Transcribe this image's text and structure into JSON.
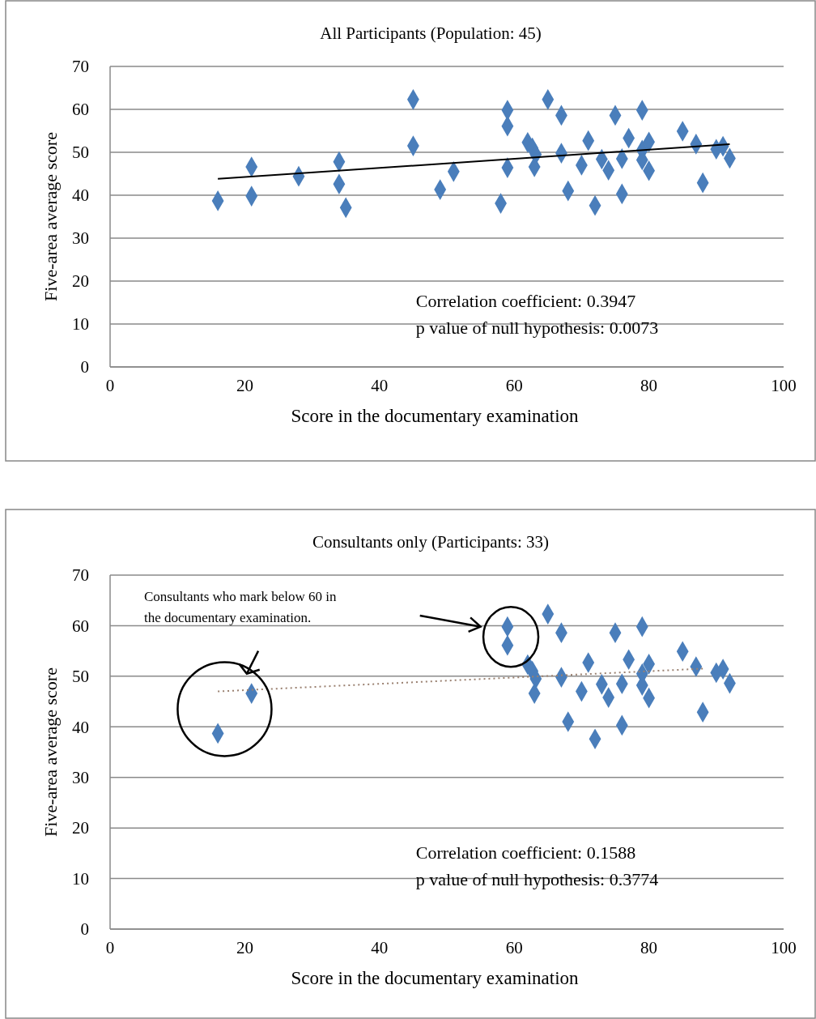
{
  "chart_data": [
    {
      "type": "scatter",
      "title": "All Participants (Population: 45)",
      "xlabel": "Score in the documentary examination",
      "ylabel": "Five-area average score",
      "xlim": [
        0,
        100
      ],
      "xticks": [
        0,
        20,
        40,
        60,
        80,
        100
      ],
      "ylim": [
        0,
        70
      ],
      "yticks": [
        0,
        10,
        20,
        30,
        40,
        50,
        60,
        70
      ],
      "grid": "y",
      "marker": "diamond",
      "annotations": [
        "Correlation coefficient: 0.3947",
        "p value of  null hypothesis: 0.0073"
      ],
      "series": [
        {
          "type": "scatter",
          "color": "#4a7ebb",
          "x": [
            16,
            21,
            21,
            28,
            34,
            34,
            35,
            45,
            45,
            49,
            51,
            58,
            59,
            59,
            59,
            62,
            62.7,
            63.2,
            63,
            65,
            67,
            67,
            68,
            70,
            71,
            72,
            73,
            74,
            75,
            76,
            76,
            77,
            79,
            79,
            79,
            80,
            80,
            85,
            87,
            88,
            90,
            91,
            92
          ],
          "values": [
            38.7,
            46.6,
            39.8,
            44.4,
            47.8,
            42.6,
            37.1,
            62.3,
            51.5,
            41.3,
            45.5,
            38.1,
            59.8,
            56.1,
            46.4,
            52.3,
            51,
            49.5,
            46.6,
            62.3,
            58.6,
            49.8,
            41,
            47,
            52.7,
            37.6,
            48.4,
            45.8,
            58.6,
            48.5,
            40.3,
            53.3,
            59.8,
            50.5,
            48.2,
            52.4,
            45.7,
            54.9,
            51.9,
            42.9,
            50.7,
            51.4,
            48.6
          ]
        },
        {
          "type": "line",
          "color": "#000000",
          "marker": "none",
          "line_style": "solid",
          "x": [
            16,
            92
          ],
          "values": [
            43.8,
            51.9
          ]
        }
      ]
    },
    {
      "type": "scatter",
      "title": "Consultants only (Participants: 33)",
      "xlabel": "Score in the documentary examination",
      "ylabel": "Five-area average score",
      "xlim": [
        0,
        100
      ],
      "xticks": [
        0,
        20,
        40,
        60,
        80,
        100
      ],
      "ylim": [
        0,
        70
      ],
      "yticks": [
        0,
        10,
        20,
        30,
        40,
        50,
        60,
        70
      ],
      "grid": "y",
      "marker": "diamond",
      "annotations": [
        "Consultants who mark below 60 in the documentary examination.",
        "Correlation coefficient: 0.1588",
        "p value of    null hypothesis: 0.3774"
      ],
      "series": [
        {
          "type": "scatter",
          "color": "#4a7ebb",
          "x": [
            16,
            21,
            59,
            59,
            62,
            62.7,
            63.2,
            63,
            65,
            67,
            67,
            68,
            70,
            71,
            72,
            73,
            74,
            75,
            76,
            76,
            77,
            79,
            79,
            79,
            80,
            80,
            85,
            87,
            88,
            90,
            91,
            92
          ],
          "values": [
            38.7,
            46.6,
            59.8,
            56.1,
            52.3,
            51,
            49.5,
            46.6,
            62.3,
            58.6,
            49.8,
            41,
            47,
            52.7,
            37.6,
            48.4,
            45.8,
            58.6,
            48.5,
            40.3,
            53.3,
            59.8,
            50.5,
            48.2,
            52.4,
            45.7,
            54.9,
            51.9,
            42.9,
            50.7,
            51.4,
            48.6
          ]
        },
        {
          "type": "line",
          "color": "#9a8070",
          "marker": "none",
          "line_style": "dotted",
          "x": [
            16,
            88
          ],
          "values": [
            47,
            51.5
          ]
        }
      ]
    }
  ]
}
